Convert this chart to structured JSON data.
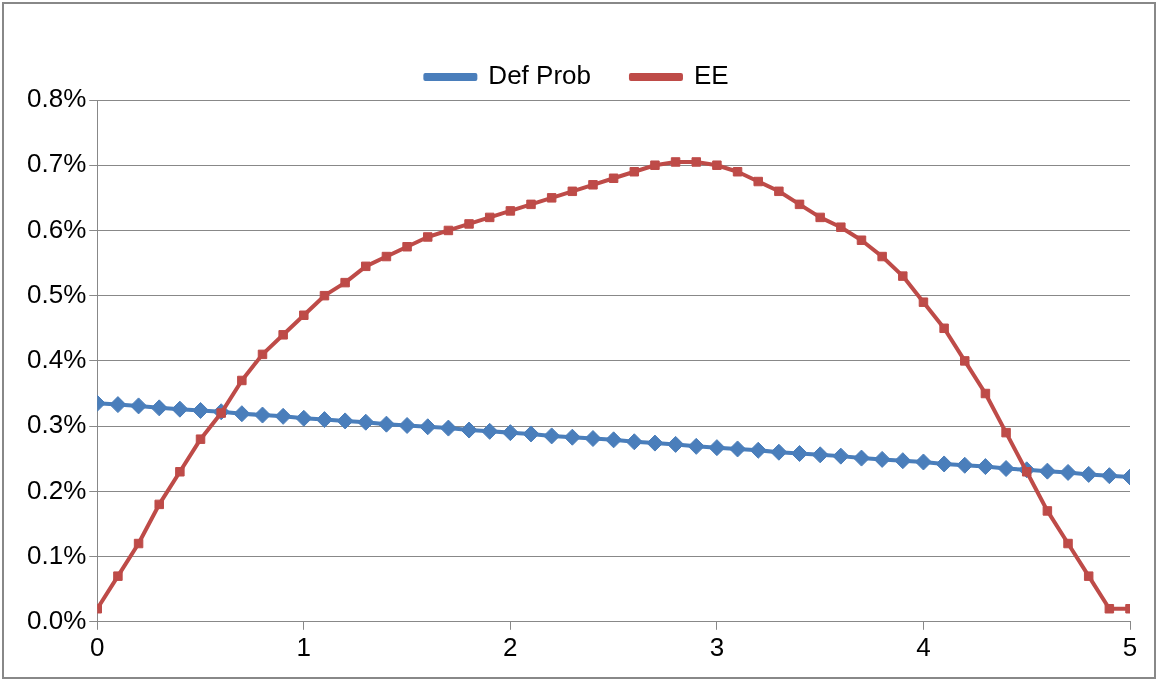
{
  "chart_data": {
    "type": "line",
    "x": [
      0,
      0.1,
      0.2,
      0.3,
      0.4,
      0.5,
      0.6,
      0.7,
      0.8,
      0.9,
      1,
      1.1,
      1.2,
      1.3,
      1.4,
      1.5,
      1.6,
      1.7,
      1.8,
      1.9,
      2,
      2.1,
      2.2,
      2.3,
      2.4,
      2.5,
      2.6,
      2.7,
      2.8,
      2.9,
      3,
      3.1,
      3.2,
      3.3,
      3.4,
      3.5,
      3.6,
      3.7,
      3.8,
      3.9,
      4,
      4.1,
      4.2,
      4.3,
      4.4,
      4.5,
      4.6,
      4.7,
      4.8,
      4.9,
      5
    ],
    "series": [
      {
        "name": "Def Prob",
        "color": "#4a7ebb",
        "marker": "diamond",
        "values": [
          0.335,
          0.333,
          0.331,
          0.328,
          0.326,
          0.324,
          0.322,
          0.319,
          0.317,
          0.315,
          0.312,
          0.31,
          0.308,
          0.306,
          0.303,
          0.301,
          0.299,
          0.297,
          0.294,
          0.292,
          0.29,
          0.288,
          0.285,
          0.283,
          0.281,
          0.279,
          0.276,
          0.274,
          0.272,
          0.269,
          0.267,
          0.265,
          0.263,
          0.26,
          0.258,
          0.256,
          0.254,
          0.251,
          0.249,
          0.247,
          0.245,
          0.242,
          0.24,
          0.238,
          0.235,
          0.233,
          0.231,
          0.229,
          0.226,
          0.224,
          0.222
        ]
      },
      {
        "name": "EE",
        "color": "#be4b48",
        "marker": "square",
        "values": [
          0.02,
          0.07,
          0.12,
          0.18,
          0.23,
          0.28,
          0.32,
          0.37,
          0.41,
          0.44,
          0.47,
          0.5,
          0.52,
          0.545,
          0.56,
          0.575,
          0.59,
          0.6,
          0.61,
          0.62,
          0.63,
          0.64,
          0.65,
          0.66,
          0.67,
          0.68,
          0.69,
          0.7,
          0.705,
          0.705,
          0.7,
          0.69,
          0.675,
          0.66,
          0.64,
          0.62,
          0.605,
          0.585,
          0.56,
          0.53,
          0.49,
          0.45,
          0.4,
          0.35,
          0.29,
          0.23,
          0.17,
          0.12,
          0.07,
          0.02,
          0.02
        ]
      }
    ],
    "xlim": [
      0,
      5
    ],
    "xticks": [
      0,
      1,
      2,
      3,
      4,
      5
    ],
    "ylim": [
      0,
      0.8
    ],
    "yticks": [
      {
        "value": 0,
        "label": "0.0%"
      },
      {
        "value": 0.1,
        "label": "0.1%"
      },
      {
        "value": 0.2,
        "label": "0.2%"
      },
      {
        "value": 0.3,
        "label": "0.3%"
      },
      {
        "value": 0.4,
        "label": "0.4%"
      },
      {
        "value": 0.5,
        "label": "0.5%"
      },
      {
        "value": 0.6,
        "label": "0.6%"
      },
      {
        "value": 0.7,
        "label": "0.7%"
      },
      {
        "value": 0.8,
        "label": "0.8%"
      }
    ],
    "grid": "y",
    "legend": "top",
    "line_style": "solid"
  }
}
